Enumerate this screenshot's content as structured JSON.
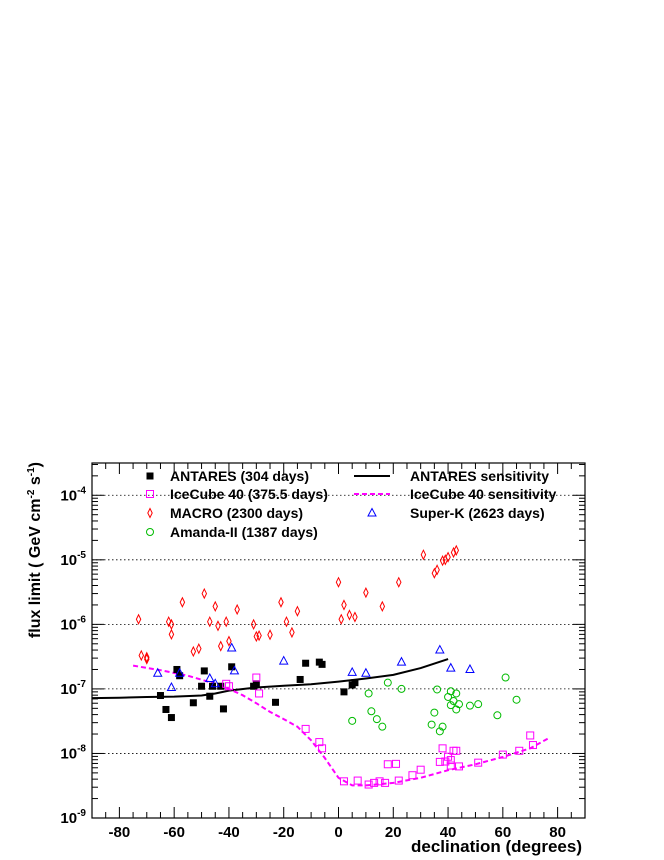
{
  "chart_data": {
    "type": "scatter",
    "title": "",
    "xlabel": "declination (degrees)",
    "ylabel_parts": [
      "flux limit ( GeV cm",
      "-2",
      " s",
      "-1",
      ")"
    ],
    "xlim": [
      -90,
      90
    ],
    "ylim_log10": [
      -9,
      -3.5
    ],
    "x_ticks": [
      -80,
      -60,
      -40,
      -20,
      0,
      20,
      40,
      60,
      80
    ],
    "y_ticks": [
      {
        "base": "10",
        "exp": "-9",
        "log": -9
      },
      {
        "base": "10",
        "exp": "-8",
        "log": -8
      },
      {
        "base": "10",
        "exp": "-7",
        "log": -7
      },
      {
        "base": "10",
        "exp": "-6",
        "log": -6
      },
      {
        "base": "10",
        "exp": "-5",
        "log": -5
      },
      {
        "base": "10",
        "exp": "-4",
        "log": -4
      }
    ],
    "grid": "horizontal dotted",
    "legend": [
      {
        "label": "ANTARES (304 days)",
        "marker": "square-filled",
        "color": "#000000"
      },
      {
        "label": "ANTARES sensitivity",
        "marker": "line-solid",
        "color": "#000000"
      },
      {
        "label": "IceCube 40 (375.5 days)",
        "marker": "square-open",
        "color": "#ff00ff"
      },
      {
        "label": "IceCube 40 sensitivity",
        "marker": "line-dashed",
        "color": "#ff00ff"
      },
      {
        "label": "MACRO (2300 days)",
        "marker": "diamond-open",
        "color": "#ff0000"
      },
      {
        "label": "Super-K (2623 days)",
        "marker": "triangle-open",
        "color": "#0000ff"
      },
      {
        "label": "Amanda-II (1387 days)",
        "marker": "circle-open",
        "color": "#00bb00"
      }
    ],
    "series": [
      {
        "name": "ANTARES (304 days)",
        "marker": "square-filled",
        "color": "#000000",
        "points": [
          [
            -65,
            7.9e-08
          ],
          [
            -63,
            4.8e-08
          ],
          [
            -61,
            3.6e-08
          ],
          [
            -59,
            2e-07
          ],
          [
            -58,
            1.6e-07
          ],
          [
            -53,
            6.1e-08
          ],
          [
            -50,
            1.1e-07
          ],
          [
            -49,
            1.9e-07
          ],
          [
            -47,
            7.7e-08
          ],
          [
            -46,
            1.1e-07
          ],
          [
            -43,
            1.1e-07
          ],
          [
            -42,
            4.9e-08
          ],
          [
            -39,
            2.2e-07
          ],
          [
            -31,
            1.1e-07
          ],
          [
            -30,
            1.2e-07
          ],
          [
            -23,
            6.2e-08
          ],
          [
            -14,
            1.4e-07
          ],
          [
            -12,
            2.5e-07
          ],
          [
            -7,
            2.6e-07
          ],
          [
            -6,
            2.4e-07
          ],
          [
            2,
            9e-08
          ],
          [
            5,
            1.15e-07
          ],
          [
            6,
            1.25e-07
          ]
        ]
      },
      {
        "name": "IceCube 40 (375.5 days)",
        "marker": "square-open",
        "color": "#ff00ff",
        "points": [
          [
            -41,
            1.2e-07
          ],
          [
            -40,
            1.1e-07
          ],
          [
            -30,
            1.5e-07
          ],
          [
            -29,
            8.5e-08
          ],
          [
            -12,
            2.4e-08
          ],
          [
            -7,
            1.5e-08
          ],
          [
            -6,
            1.2e-08
          ],
          [
            2,
            3.7e-09
          ],
          [
            7,
            3.8e-09
          ],
          [
            11,
            3.3e-09
          ],
          [
            13,
            3.5e-09
          ],
          [
            15,
            3.7e-09
          ],
          [
            17,
            3.5e-09
          ],
          [
            18,
            6.8e-09
          ],
          [
            21,
            6.9e-09
          ],
          [
            22,
            3.8e-09
          ],
          [
            27,
            4.6e-09
          ],
          [
            30,
            5.6e-09
          ],
          [
            37,
            7.4e-09
          ],
          [
            38,
            1.2e-08
          ],
          [
            39,
            7.5e-09
          ],
          [
            40,
            8.9e-09
          ],
          [
            41,
            7.9e-09
          ],
          [
            41,
            6.5e-09
          ],
          [
            42,
            1.1e-08
          ],
          [
            43,
            1.1e-08
          ],
          [
            44,
            6.3e-09
          ],
          [
            51,
            7.2e-09
          ],
          [
            60,
            9.6e-09
          ],
          [
            66,
            1.1e-08
          ],
          [
            71,
            1.35e-08
          ],
          [
            70,
            1.9e-08
          ]
        ]
      },
      {
        "name": "MACRO (2300 days)",
        "marker": "diamond-open",
        "color": "#ff0000",
        "points": [
          [
            -73,
            1.2e-06
          ],
          [
            -72,
            3.3e-07
          ],
          [
            -70,
            3.1e-07
          ],
          [
            -70,
            2.9e-07
          ],
          [
            -62,
            1.1e-06
          ],
          [
            -61,
            1e-06
          ],
          [
            -61,
            7e-07
          ],
          [
            -57,
            2.2e-06
          ],
          [
            -53,
            3.8e-07
          ],
          [
            -51,
            4.2e-07
          ],
          [
            -49,
            3e-06
          ],
          [
            -47,
            1.1e-06
          ],
          [
            -45,
            1.9e-06
          ],
          [
            -44,
            9.5e-07
          ],
          [
            -43,
            4.6e-07
          ],
          [
            -41,
            1.1e-06
          ],
          [
            -40,
            5.5e-07
          ],
          [
            -37,
            1.7e-06
          ],
          [
            -31,
            1e-06
          ],
          [
            -30,
            6.5e-07
          ],
          [
            -29,
            6.7e-07
          ],
          [
            -25,
            6.9e-07
          ],
          [
            -21,
            2.2e-06
          ],
          [
            -19,
            1.1e-06
          ],
          [
            -17,
            7.5e-07
          ],
          [
            -15,
            1.6e-06
          ],
          [
            0,
            4.5e-06
          ],
          [
            1,
            1.2e-06
          ],
          [
            2,
            2e-06
          ],
          [
            4,
            1.4e-06
          ],
          [
            6,
            1.3e-06
          ],
          [
            10,
            3.1e-06
          ],
          [
            16,
            1.9e-06
          ],
          [
            22,
            4.5e-06
          ],
          [
            31,
            1.2e-05
          ],
          [
            35,
            6.2e-06
          ],
          [
            36,
            7e-06
          ],
          [
            38,
            9.7e-06
          ],
          [
            39,
            1e-05
          ],
          [
            40,
            1.1e-05
          ],
          [
            42,
            1.3e-05
          ],
          [
            43,
            1.4e-05
          ]
        ]
      },
      {
        "name": "Super-K (2623 days)",
        "marker": "triangle-open",
        "color": "#0000ff",
        "points": [
          [
            -66,
            1.75e-07
          ],
          [
            -61,
            1.05e-07
          ],
          [
            -58,
            1.75e-07
          ],
          [
            -47,
            1.45e-07
          ],
          [
            -45,
            1.2e-07
          ],
          [
            -39,
            4.3e-07
          ],
          [
            -38,
            1.9e-07
          ],
          [
            -20,
            2.7e-07
          ],
          [
            5,
            1.8e-07
          ],
          [
            10,
            1.75e-07
          ],
          [
            23,
            2.6e-07
          ],
          [
            37,
            4e-07
          ],
          [
            41,
            2.1e-07
          ],
          [
            48,
            2e-07
          ]
        ]
      },
      {
        "name": "Amanda-II (1387 days)",
        "marker": "circle-open",
        "color": "#00bb00",
        "points": [
          [
            5,
            3.2e-08
          ],
          [
            11,
            8.5e-08
          ],
          [
            12,
            4.5e-08
          ],
          [
            14,
            3.4e-08
          ],
          [
            16,
            2.6e-08
          ],
          [
            18,
            1.25e-07
          ],
          [
            23,
            1e-07
          ],
          [
            34,
            2.8e-08
          ],
          [
            35,
            4.3e-08
          ],
          [
            36,
            9.8e-08
          ],
          [
            37,
            2.2e-08
          ],
          [
            38,
            2.6e-08
          ],
          [
            40,
            7.5e-08
          ],
          [
            41,
            9.2e-08
          ],
          [
            41,
            5.6e-08
          ],
          [
            42,
            6.5e-08
          ],
          [
            43,
            4.8e-08
          ],
          [
            43,
            8.5e-08
          ],
          [
            44,
            5.8e-08
          ],
          [
            48,
            5.5e-08
          ],
          [
            51,
            5.8e-08
          ],
          [
            58,
            3.9e-08
          ],
          [
            61,
            1.5e-07
          ],
          [
            65,
            6.8e-08
          ]
        ]
      }
    ],
    "curves": [
      {
        "name": "ANTARES sensitivity",
        "style": "solid",
        "color": "#000000",
        "points": [
          [
            -90,
            7.2e-08
          ],
          [
            -80,
            7.3e-08
          ],
          [
            -70,
            7.5e-08
          ],
          [
            -60,
            7.6e-08
          ],
          [
            -50,
            7.9e-08
          ],
          [
            -45,
            8.5e-08
          ],
          [
            -40,
            9.4e-08
          ],
          [
            -30,
            1.05e-07
          ],
          [
            -20,
            1.12e-07
          ],
          [
            -10,
            1.18e-07
          ],
          [
            0,
            1.3e-07
          ],
          [
            10,
            1.45e-07
          ],
          [
            20,
            1.65e-07
          ],
          [
            30,
            2.1e-07
          ],
          [
            40,
            2.9e-07
          ]
        ]
      },
      {
        "name": "IceCube 40 sensitivity",
        "style": "dashed",
        "color": "#ff00ff",
        "points": [
          [
            -75,
            2.3e-07
          ],
          [
            -65,
            1.95e-07
          ],
          [
            -55,
            1.6e-07
          ],
          [
            -45,
            1.2e-07
          ],
          [
            -40,
            1e-07
          ],
          [
            -35,
            8e-08
          ],
          [
            -30,
            6e-08
          ],
          [
            -25,
            4.4e-08
          ],
          [
            -20,
            3.4e-08
          ],
          [
            -15,
            2.6e-08
          ],
          [
            -10,
            1.6e-08
          ],
          [
            -5,
            8.5e-09
          ],
          [
            0,
            4.2e-09
          ],
          [
            5,
            3.2e-09
          ],
          [
            10,
            3.2e-09
          ],
          [
            20,
            3.5e-09
          ],
          [
            30,
            4.2e-09
          ],
          [
            40,
            5.5e-09
          ],
          [
            50,
            6.8e-09
          ],
          [
            60,
            8.8e-09
          ],
          [
            70,
            1.2e-08
          ],
          [
            77,
            1.75e-08
          ]
        ]
      }
    ]
  }
}
